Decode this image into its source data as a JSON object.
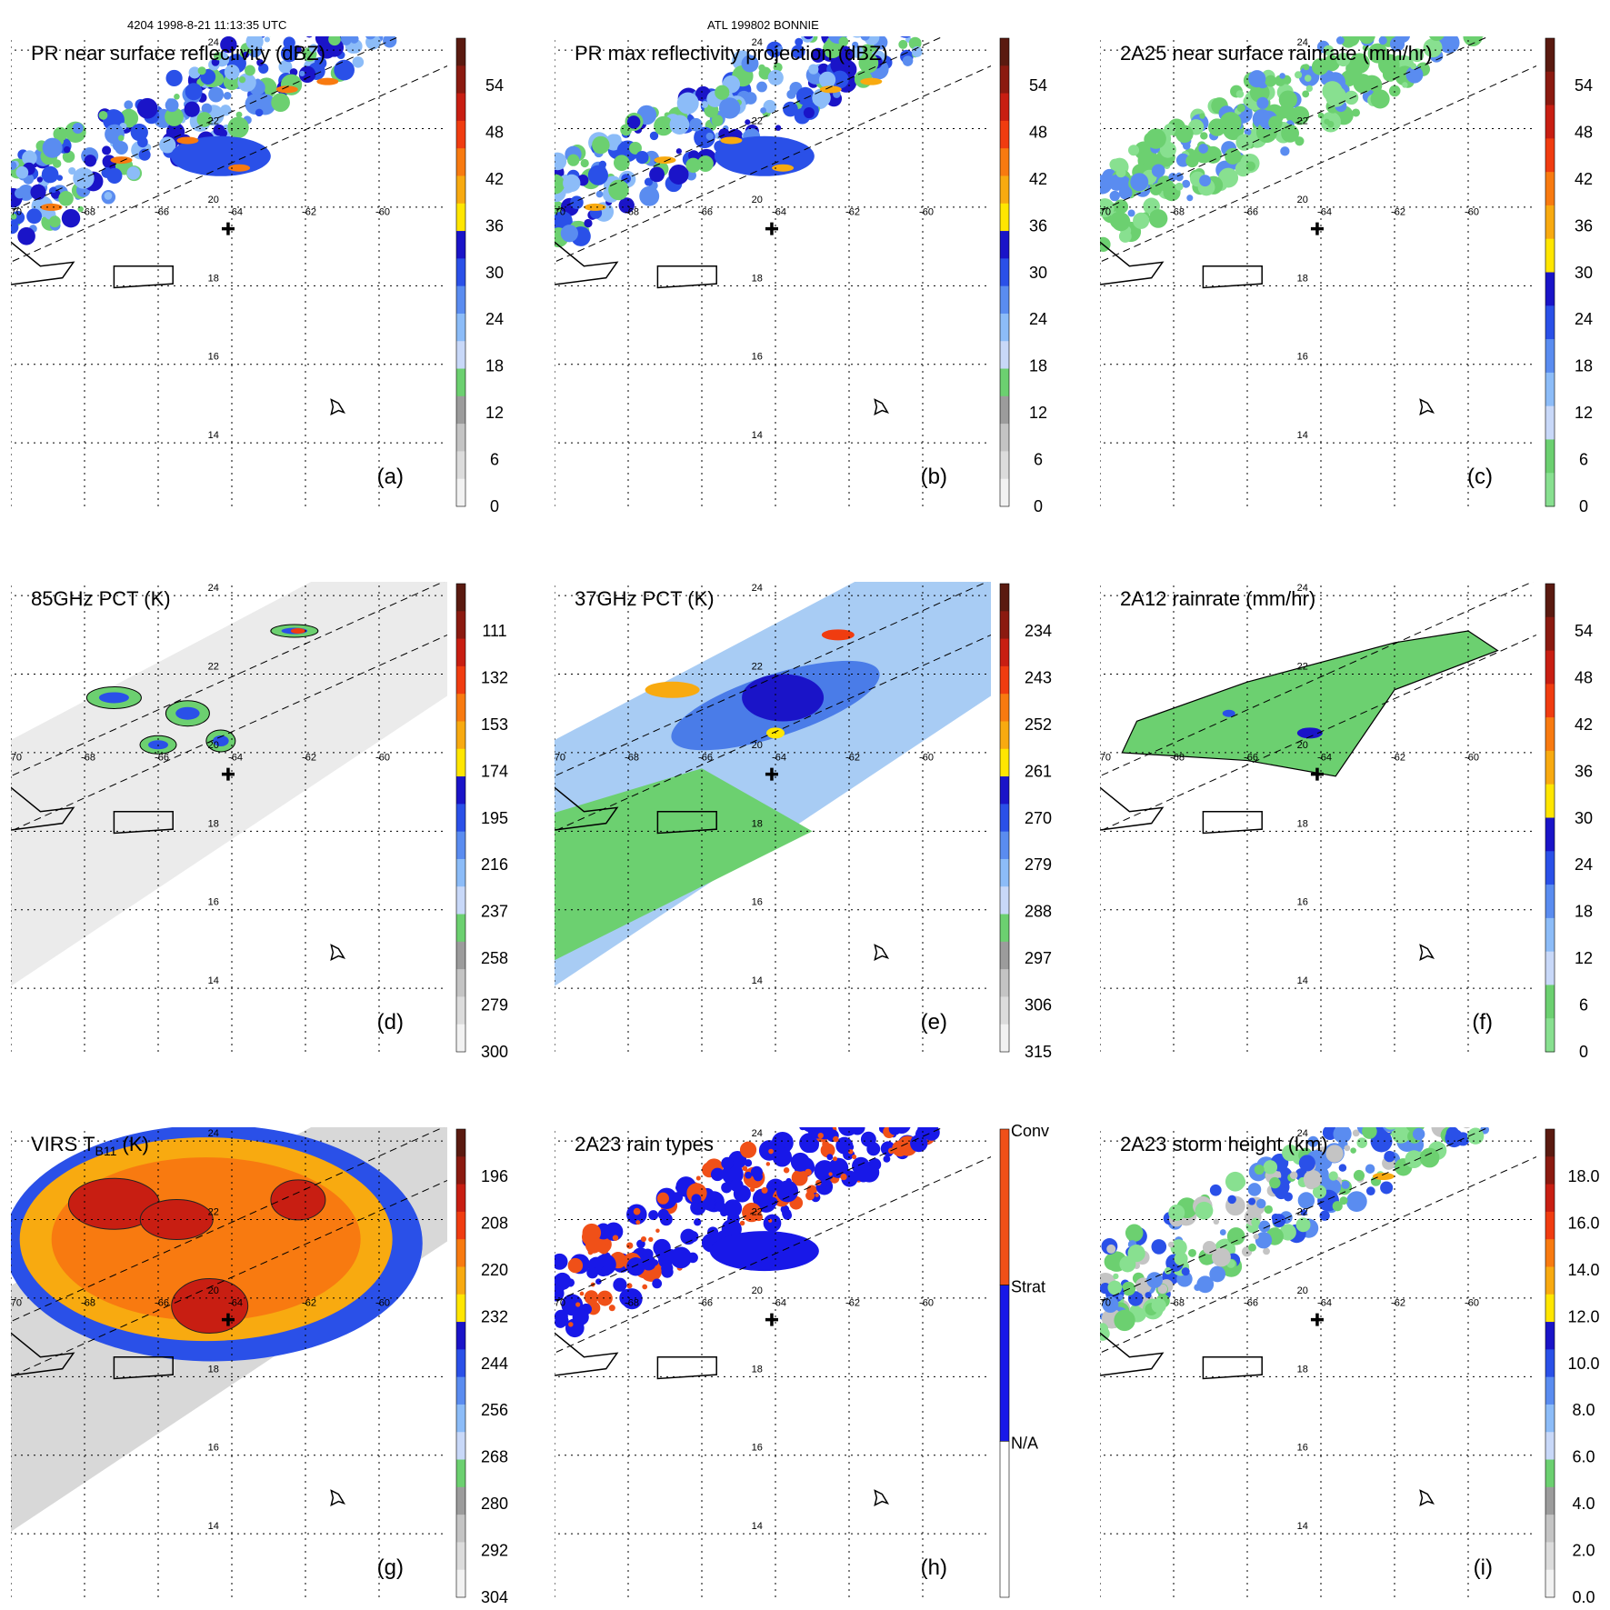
{
  "header": {
    "orbit_time": "4204 1998-8-21 11:13:35 UTC",
    "storm": "ATL 199802 BONNIE"
  },
  "lon_labels": [
    "-70",
    "-68",
    "-66",
    "-64",
    "-62",
    "-60"
  ],
  "lat_labels": [
    "14",
    "16",
    "18",
    "20",
    "22",
    "24"
  ],
  "panels": [
    {
      "id": "a",
      "title": "PR near surface reflectivity (dBZ)",
      "letter": "(a)",
      "kind": "pr",
      "colorbar": {
        "ticks": [
          "54",
          "48",
          "42",
          "36",
          "30",
          "24",
          "18",
          "12",
          "6",
          "0"
        ],
        "bands": [
          "#5a1a10",
          "#8b1a10",
          "#c81e12",
          "#f03c10",
          "#f87a10",
          "#f8aa10",
          "#ffe600",
          "#1a14c8",
          "#2a50e8",
          "#5a8cf0",
          "#8cbcf8",
          "#c8d8f8",
          "#6cd070",
          "#9c9c9c",
          "#c4c4c4",
          "#dcdcdc",
          "#f2f2f2"
        ]
      }
    },
    {
      "id": "b",
      "title": "PR max reflectivity projection (dBZ)",
      "letter": "(b)",
      "kind": "pr",
      "colorbar": {
        "ticks": [
          "54",
          "48",
          "42",
          "36",
          "30",
          "24",
          "18",
          "12",
          "6",
          "0"
        ],
        "bands": [
          "#5a1a10",
          "#8b1a10",
          "#c81e12",
          "#f03c10",
          "#f87a10",
          "#f8aa10",
          "#ffe600",
          "#1a14c8",
          "#2a50e8",
          "#5a8cf0",
          "#8cbcf8",
          "#c8d8f8",
          "#6cd070",
          "#9c9c9c",
          "#c4c4c4",
          "#dcdcdc",
          "#f2f2f2"
        ]
      }
    },
    {
      "id": "c",
      "title": "2A25 near surface rainrate (mm/hr)",
      "letter": "(c)",
      "kind": "pr-green",
      "colorbar": {
        "ticks": [
          "54",
          "48",
          "42",
          "36",
          "30",
          "24",
          "18",
          "12",
          "6",
          "0"
        ],
        "bands": [
          "#5a1a10",
          "#8b1a10",
          "#c81e12",
          "#f03c10",
          "#f87a10",
          "#f8aa10",
          "#ffe600",
          "#1a14c8",
          "#2a50e8",
          "#5a8cf0",
          "#8cbcf8",
          "#c8d8f8",
          "#6cd070",
          "#88e090"
        ]
      }
    },
    {
      "id": "d",
      "title": "85GHz PCT (K)",
      "letter": "(d)",
      "kind": "tmi-gray",
      "colorbar": {
        "ticks": [
          "111",
          "132",
          "153",
          "174",
          "195",
          "216",
          "237",
          "258",
          "279",
          "300"
        ],
        "bands": [
          "#5a1a10",
          "#8b1a10",
          "#c81e12",
          "#f03c10",
          "#f87a10",
          "#f8aa10",
          "#ffe600",
          "#1a14c8",
          "#2a50e8",
          "#5a8cf0",
          "#8cbcf8",
          "#c8d8f8",
          "#6cd070",
          "#9c9c9c",
          "#c4c4c4",
          "#dcdcdc",
          "#f2f2f2"
        ]
      }
    },
    {
      "id": "e",
      "title": "37GHz PCT (K)",
      "letter": "(e)",
      "kind": "tmi-blue",
      "colorbar": {
        "ticks": [
          "234",
          "243",
          "252",
          "261",
          "270",
          "279",
          "288",
          "297",
          "306",
          "315"
        ],
        "bands": [
          "#5a1a10",
          "#8b1a10",
          "#c81e12",
          "#f03c10",
          "#f87a10",
          "#f8aa10",
          "#ffe600",
          "#1a14c8",
          "#2a50e8",
          "#5a8cf0",
          "#8cbcf8",
          "#c8d8f8",
          "#6cd070",
          "#9c9c9c",
          "#c4c4c4",
          "#dcdcdc",
          "#f2f2f2"
        ]
      }
    },
    {
      "id": "f",
      "title": "2A12 rainrate (mm/hr)",
      "letter": "(f)",
      "kind": "tmi-green",
      "colorbar": {
        "ticks": [
          "54",
          "48",
          "42",
          "36",
          "30",
          "24",
          "18",
          "12",
          "6",
          "0"
        ],
        "bands": [
          "#5a1a10",
          "#8b1a10",
          "#c81e12",
          "#f03c10",
          "#f87a10",
          "#f8aa10",
          "#ffe600",
          "#1a14c8",
          "#2a50e8",
          "#5a8cf0",
          "#8cbcf8",
          "#c8d8f8",
          "#6cd070",
          "#88e090"
        ]
      }
    },
    {
      "id": "g",
      "title_main": "VIRS T",
      "title_sub": "B11",
      "title_tail": " (K)",
      "letter": "(g)",
      "kind": "virs",
      "colorbar": {
        "ticks": [
          "196",
          "208",
          "220",
          "232",
          "244",
          "256",
          "268",
          "280",
          "292",
          "304"
        ],
        "bands": [
          "#5a1a10",
          "#8b1a10",
          "#c81e12",
          "#f03c10",
          "#f87a10",
          "#f8aa10",
          "#ffe600",
          "#1a14c8",
          "#2a50e8",
          "#5a8cf0",
          "#8cbcf8",
          "#c8d8f8",
          "#6cd070",
          "#9c9c9c",
          "#c4c4c4",
          "#dcdcdc",
          "#f2f2f2"
        ]
      }
    },
    {
      "id": "h",
      "title": "2A23 rain types",
      "letter": "(h)",
      "kind": "raintype",
      "colorbar": {
        "categories": [
          "Conv",
          "Strat",
          "N/A"
        ],
        "colors": [
          "#f05018",
          "#1818e8",
          "#ffffff"
        ]
      }
    },
    {
      "id": "i",
      "title": "2A23 storm height (km)",
      "letter": "(i)",
      "kind": "height",
      "colorbar": {
        "ticks": [
          "18.0",
          "16.0",
          "14.0",
          "12.0",
          "10.0",
          "8.0",
          "6.0",
          "4.0",
          "2.0",
          "0.0"
        ],
        "bands": [
          "#5a1a10",
          "#8b1a10",
          "#c81e12",
          "#f03c10",
          "#f87a10",
          "#f8aa10",
          "#ffe600",
          "#1a14c8",
          "#2a50e8",
          "#5a8cf0",
          "#8cbcf8",
          "#c8d8f8",
          "#6cd070",
          "#9c9c9c",
          "#c4c4c4",
          "#dcdcdc",
          "#f2f2f2"
        ]
      }
    }
  ]
}
